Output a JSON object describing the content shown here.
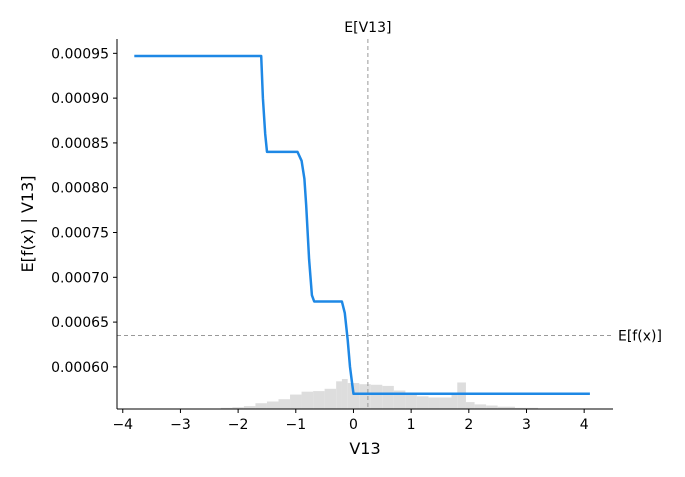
{
  "chart_data": {
    "type": "line",
    "title": "",
    "xlabel": "V13",
    "ylabel": "E[f(x) | V13]",
    "xlim": [
      -4.1,
      4.5
    ],
    "ylim": [
      0.000553,
      0.000966
    ],
    "xticks": [
      -4,
      -3,
      -2,
      -1,
      0,
      1,
      2,
      3,
      4
    ],
    "xtick_labels": [
      "−4",
      "−3",
      "−2",
      "−1",
      "0",
      "1",
      "2",
      "3",
      "4"
    ],
    "yticks": [
      0.0006,
      0.00065,
      0.0007,
      0.00075,
      0.0008,
      0.00085,
      0.0009,
      0.00095
    ],
    "ytick_labels": [
      "0.00060",
      "0.00065",
      "0.00070",
      "0.00075",
      "0.00080",
      "0.00085",
      "0.00090",
      "0.00095"
    ],
    "grid": false,
    "series": [
      {
        "color": "#1e88e5",
        "x": [
          -3.8,
          -1.6,
          -1.57,
          -1.53,
          -1.5,
          -0.97,
          -0.9,
          -0.85,
          -0.82,
          -0.77,
          -0.72,
          -0.68,
          -0.2,
          -0.15,
          -0.1,
          -0.06,
          -0.02,
          0.0,
          4.1
        ],
        "y": [
          0.000947,
          0.000947,
          0.0009,
          0.00086,
          0.00084,
          0.00084,
          0.00083,
          0.00081,
          0.00078,
          0.00072,
          0.00068,
          0.000673,
          0.000673,
          0.00066,
          0.00063,
          0.0006,
          0.00058,
          0.00057,
          0.00057
        ]
      }
    ],
    "reference_lines": {
      "vertical": {
        "label": "E[V13]",
        "x": 0.25,
        "color": "#999999"
      },
      "horizontal": {
        "label": "E[f(x)]",
        "y": 0.000635,
        "color": "#999999"
      }
    },
    "histogram": {
      "color": "#dddddd",
      "bin_edges": [
        -2.3,
        -2.1,
        -1.9,
        -1.7,
        -1.5,
        -1.3,
        -1.1,
        -0.9,
        -0.7,
        -0.5,
        -0.3,
        -0.2,
        -0.1,
        0.1,
        0.3,
        0.5,
        0.7,
        0.9,
        1.1,
        1.3,
        1.5,
        1.7,
        1.8,
        1.95,
        2.1,
        2.3,
        2.5,
        2.8,
        3.2
      ],
      "heights": [
        0.02,
        0.03,
        0.05,
        0.1,
        0.13,
        0.17,
        0.25,
        0.3,
        0.31,
        0.35,
        0.48,
        0.52,
        0.45,
        0.43,
        0.42,
        0.4,
        0.32,
        0.28,
        0.22,
        0.2,
        0.2,
        0.28,
        0.46,
        0.12,
        0.08,
        0.06,
        0.04,
        0.02
      ]
    }
  }
}
